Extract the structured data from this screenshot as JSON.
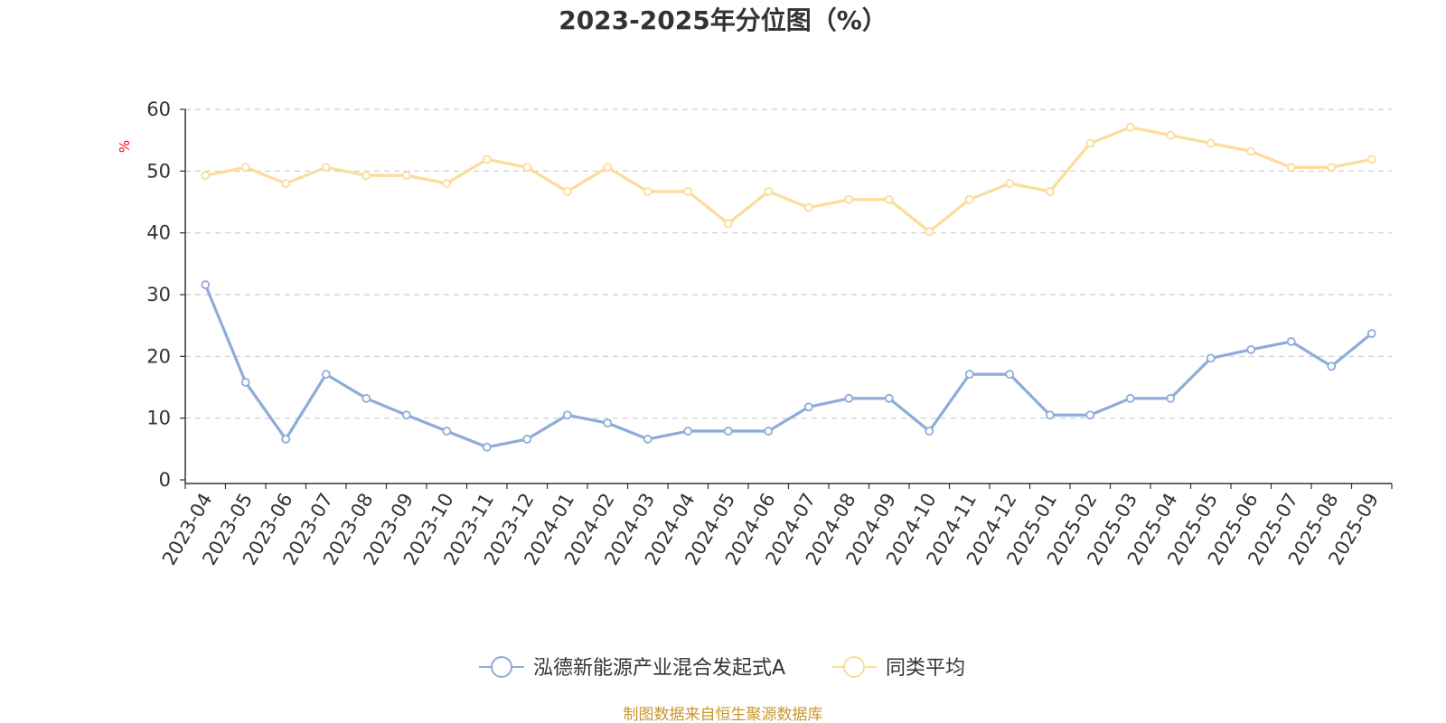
{
  "chart_data": {
    "type": "line",
    "title": "2023-2025年分位图（%）",
    "ylabel": "%",
    "xlabel": "",
    "ylim": [
      0,
      60
    ],
    "yticks": [
      0,
      10,
      20,
      30,
      40,
      50,
      60
    ],
    "grid": true,
    "legend_position": "bottom-center",
    "categories": [
      "2023-04",
      "2023-05",
      "2023-06",
      "2023-07",
      "2023-08",
      "2023-09",
      "2023-10",
      "2023-11",
      "2023-12",
      "2024-01",
      "2024-02",
      "2024-03",
      "2024-04",
      "2024-05",
      "2024-06",
      "2024-07",
      "2024-08",
      "2024-09",
      "2024-10",
      "2024-11",
      "2024-12",
      "2025-01",
      "2025-02",
      "2025-03",
      "2025-04",
      "2025-05",
      "2025-06",
      "2025-07",
      "2025-08",
      "2025-09"
    ],
    "series": [
      {
        "name": "泓德新能源产业混合发起式A",
        "color": "#8eacd8",
        "values": [
          31.6,
          15.8,
          6.6,
          17.1,
          13.2,
          10.5,
          7.9,
          5.3,
          6.6,
          10.5,
          9.2,
          6.6,
          7.9,
          7.9,
          7.9,
          11.8,
          13.2,
          13.2,
          7.9,
          17.1,
          17.1,
          10.5,
          10.5,
          13.2,
          13.2,
          19.7,
          21.1,
          22.4,
          18.4,
          23.7
        ]
      },
      {
        "name": "同类平均",
        "color": "#fbdc9b",
        "values": [
          49.3,
          50.6,
          48.0,
          50.6,
          49.3,
          49.3,
          48.0,
          51.9,
          50.6,
          46.7,
          50.6,
          46.7,
          46.7,
          41.5,
          46.7,
          44.1,
          45.4,
          45.4,
          40.2,
          45.4,
          48.0,
          46.7,
          54.5,
          57.1,
          55.8,
          54.5,
          53.2,
          50.6,
          50.6,
          51.9
        ]
      }
    ],
    "source": "制图数据来自恒生聚源数据库"
  }
}
